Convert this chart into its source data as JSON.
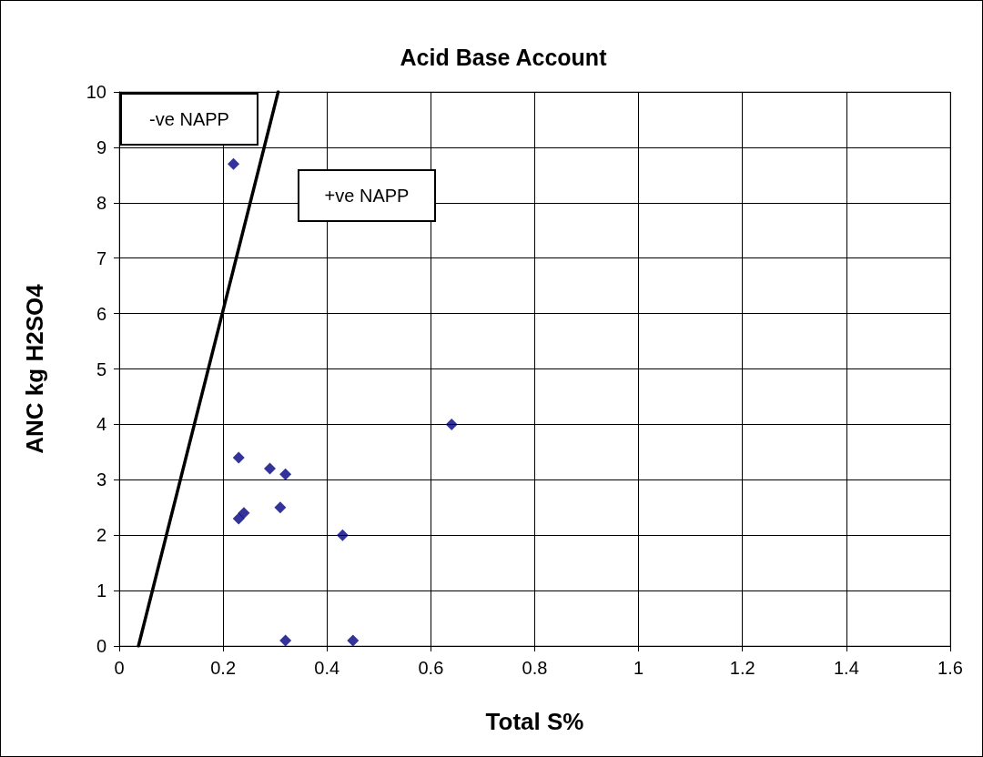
{
  "chart_data": {
    "type": "scatter",
    "title": "Acid Base Account",
    "xlabel": "Total S%",
    "ylabel": "ANC kg H2SO4",
    "annotations": [
      "-ve NAPP",
      "+ve NAPP"
    ],
    "series": [
      {
        "color": "#000080",
        "marker": "diamond",
        "x": [
          0.22,
          0.23,
          0.29,
          0.32,
          0.31,
          0.23,
          0.24,
          0.43,
          0.64,
          0.32,
          0.45
        ],
        "values": [
          8.7,
          3.4,
          3.2,
          3.1,
          2.5,
          2.3,
          2.4,
          2.0,
          4.0,
          0.1,
          0.1
        ]
      },
      {
        "type": "line",
        "marker": "none",
        "color": "#000000",
        "x": [
          0.037,
          0.306
        ],
        "values": [
          0,
          10
        ]
      }
    ],
    "grid": true,
    "xlim": [
      0,
      1.6
    ],
    "xticks": [
      0,
      0.2,
      0.4,
      0.6,
      0.8,
      1,
      1.2,
      1.4,
      1.6
    ],
    "ylim": [
      0,
      10
    ],
    "yticks": [
      0,
      1,
      2,
      3,
      4,
      5,
      6,
      7,
      8,
      9,
      10
    ]
  }
}
